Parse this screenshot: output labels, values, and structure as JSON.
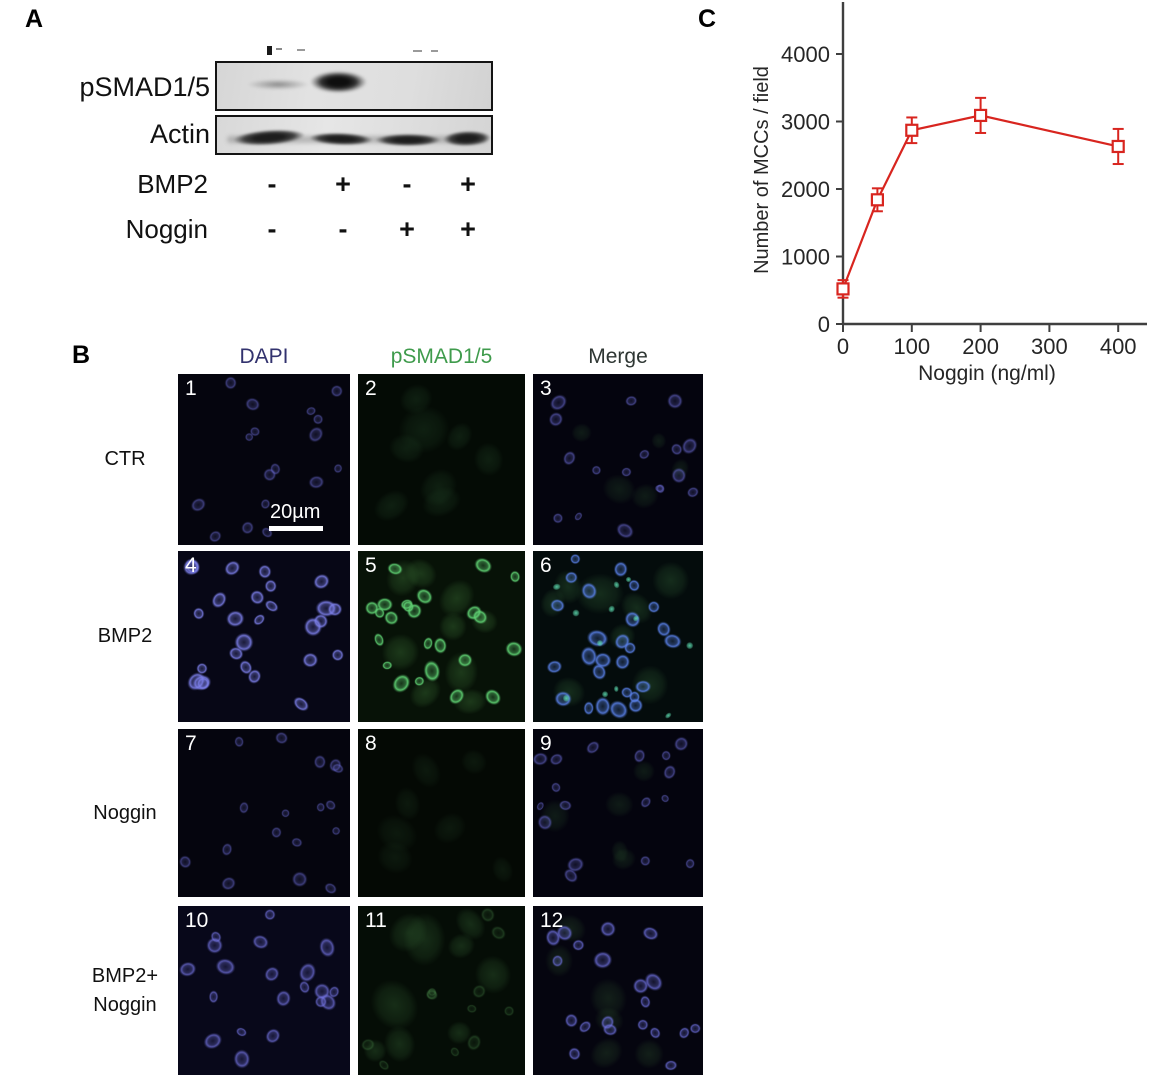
{
  "panelA": {
    "label": "A",
    "blot_rows": [
      {
        "name": "pSMAD1/5"
      },
      {
        "name": "Actin"
      }
    ],
    "condition_rows": [
      {
        "name": "BMP2",
        "values": [
          "-",
          "+",
          "-",
          "+"
        ]
      },
      {
        "name": "Noggin",
        "values": [
          "-",
          "-",
          "+",
          "+"
        ]
      }
    ]
  },
  "panelB": {
    "label": "B",
    "column_headers": [
      {
        "label": "DAPI",
        "color": "#32326e"
      },
      {
        "label": "pSMAD1/5",
        "color": "#3f9b4c"
      },
      {
        "label": "Merge",
        "color": "#2e3633"
      }
    ],
    "scale_bar_label": "20µm",
    "rows": [
      {
        "label_lines": [
          "CTR"
        ],
        "tiles": [
          {
            "number": "1",
            "kind": "dapi_dim"
          },
          {
            "number": "2",
            "kind": "psmad_neg"
          },
          {
            "number": "3",
            "kind": "merge_dim"
          }
        ]
      },
      {
        "label_lines": [
          "BMP2"
        ],
        "tiles": [
          {
            "number": "4",
            "kind": "dapi_bright"
          },
          {
            "number": "5",
            "kind": "psmad_pos"
          },
          {
            "number": "6",
            "kind": "merge_pos"
          }
        ]
      },
      {
        "label_lines": [
          "Noggin"
        ],
        "tiles": [
          {
            "number": "7",
            "kind": "dapi_dim"
          },
          {
            "number": "8",
            "kind": "psmad_dark"
          },
          {
            "number": "9",
            "kind": "merge_dim"
          }
        ]
      },
      {
        "label_lines": [
          "BMP2+",
          "Noggin"
        ],
        "tiles": [
          {
            "number": "10",
            "kind": "dapi_med"
          },
          {
            "number": "11",
            "kind": "psmad_faint"
          },
          {
            "number": "12",
            "kind": "merge_faint"
          }
        ]
      }
    ]
  },
  "panelC": {
    "label": "C"
  },
  "chart_data": {
    "type": "line",
    "title": "",
    "xlabel": "Noggin (ng/ml)",
    "ylabel": "Number of MCCs / field",
    "x": [
      0,
      50,
      100,
      200,
      400
    ],
    "y": [
      520,
      1840,
      2870,
      3090,
      2630
    ],
    "yerr": [
      130,
      170,
      190,
      260,
      260
    ],
    "xticks": [
      0,
      100,
      200,
      300,
      400
    ],
    "yticks": [
      0,
      1000,
      2000,
      3000,
      4000
    ],
    "xlim": [
      0,
      450
    ],
    "ylim": [
      0,
      4750
    ],
    "series_color": "#d8251f",
    "axis_color": "#3f3f3f",
    "marker": "open-square",
    "grid": false,
    "legend": "none"
  }
}
